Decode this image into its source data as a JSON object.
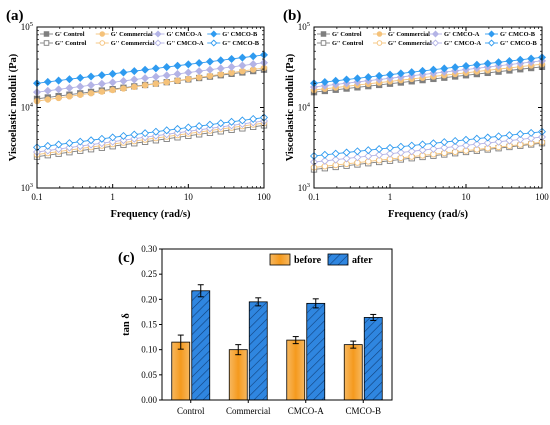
{
  "panels": {
    "a_label": "(a)",
    "b_label": "(b)",
    "c_label": "(c)"
  },
  "colors": {
    "control": "#7f7f7f",
    "commercial": "#f5c27a",
    "cmco_a": "#b3b3e6",
    "cmco_b": "#2f9bf0",
    "before": "#f59a1e",
    "after": "#2f86e0"
  },
  "chart_data": [
    {
      "id": "a",
      "type": "line",
      "xscale": "log",
      "yscale": "log",
      "xlim": [
        0.1,
        100
      ],
      "ylim": [
        1000,
        100000
      ],
      "xticks": [
        "0.1",
        "1",
        "10",
        "100"
      ],
      "yticks": [
        "10^3",
        "10^4",
        "10^5"
      ],
      "xlabel": "Frequency (rad/s)",
      "ylabel": "Viscoelastic moduli (Pa)",
      "legend": [
        "G' Control",
        "G' Commercial",
        "G' CMCO-A",
        "G' CMCO-B",
        "G'' Control",
        "G'' Commercial",
        "G'' CMCO-A",
        "G'' CMCO-B"
      ],
      "series": [
        {
          "name": "G' Control",
          "sample": "control",
          "filled": true,
          "marker": "square",
          "start": 12800,
          "end": 29500
        },
        {
          "name": "G' Commercial",
          "sample": "commercial",
          "filled": true,
          "marker": "circle",
          "start": 12000,
          "end": 31000
        },
        {
          "name": "G' CMCO-A",
          "sample": "cmco_a",
          "filled": true,
          "marker": "diamond",
          "start": 15500,
          "end": 36000
        },
        {
          "name": "G' CMCO-B",
          "sample": "cmco_b",
          "filled": true,
          "marker": "diamond",
          "start": 20000,
          "end": 45000
        },
        {
          "name": "G'' Control",
          "sample": "control",
          "filled": false,
          "marker": "square",
          "start": 2450,
          "end": 6000
        },
        {
          "name": "G'' Commercial",
          "sample": "commercial",
          "filled": false,
          "marker": "circle",
          "start": 2600,
          "end": 6400
        },
        {
          "name": "G'' CMCO-A",
          "sample": "cmco_a",
          "filled": false,
          "marker": "diamond",
          "start": 2800,
          "end": 6800
        },
        {
          "name": "G'' CMCO-B",
          "sample": "cmco_b",
          "filled": false,
          "marker": "diamond",
          "start": 3200,
          "end": 7500
        }
      ]
    },
    {
      "id": "b",
      "type": "line",
      "xscale": "log",
      "yscale": "log",
      "xlim": [
        0.1,
        100
      ],
      "ylim": [
        1000,
        100000
      ],
      "xticks": [
        "0.1",
        "1",
        "10",
        "100"
      ],
      "yticks": [
        "10^3",
        "10^4",
        "10^5"
      ],
      "xlabel": "Frequency (rad/s)",
      "ylabel": "Viscoelastic moduli (Pa)",
      "legend": [
        "G' Control",
        "G' Commercial",
        "G' CMCO-A",
        "G' CMCO-B",
        "G'' Control",
        "G'' Commercial",
        "G'' CMCO-A",
        "G'' CMCO-B"
      ],
      "series": [
        {
          "name": "G' Control",
          "sample": "control",
          "filled": true,
          "marker": "square",
          "start": 15500,
          "end": 32000
        },
        {
          "name": "G' Commercial",
          "sample": "commercial",
          "filled": true,
          "marker": "circle",
          "start": 16500,
          "end": 34500
        },
        {
          "name": "G' CMCO-A",
          "sample": "cmco_a",
          "filled": true,
          "marker": "diamond",
          "start": 18000,
          "end": 38000
        },
        {
          "name": "G' CMCO-B",
          "sample": "cmco_b",
          "filled": true,
          "marker": "diamond",
          "start": 20000,
          "end": 42000
        },
        {
          "name": "G'' Control",
          "sample": "control",
          "filled": false,
          "marker": "square",
          "start": 1700,
          "end": 3600
        },
        {
          "name": "G'' Commercial",
          "sample": "commercial",
          "filled": false,
          "marker": "circle",
          "start": 1800,
          "end": 3700
        },
        {
          "name": "G'' CMCO-A",
          "sample": "cmco_a",
          "filled": false,
          "marker": "diamond",
          "start": 2100,
          "end": 4300
        },
        {
          "name": "G'' CMCO-B",
          "sample": "cmco_b",
          "filled": false,
          "marker": "diamond",
          "start": 2500,
          "end": 5000
        }
      ]
    },
    {
      "id": "c",
      "type": "bar",
      "categories": [
        "Control",
        "Commercial",
        "CMCO-A",
        "CMCO-B"
      ],
      "ylabel": "tan δ",
      "ylim": [
        0.0,
        0.3
      ],
      "yticks": [
        "0.00",
        "0.05",
        "0.10",
        "0.15",
        "0.20",
        "0.25",
        "0.30"
      ],
      "series": [
        {
          "name": "before",
          "values": [
            0.115,
            0.1,
            0.119,
            0.11
          ],
          "errors": [
            0.014,
            0.01,
            0.007,
            0.007
          ]
        },
        {
          "name": "after",
          "values": [
            0.217,
            0.195,
            0.192,
            0.164
          ],
          "errors": [
            0.012,
            0.008,
            0.009,
            0.006
          ]
        }
      ]
    }
  ]
}
